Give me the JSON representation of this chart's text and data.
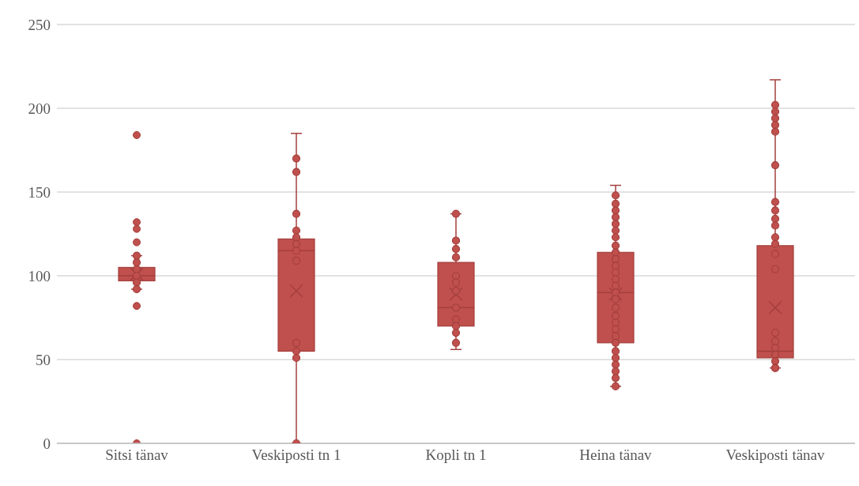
{
  "chart_data": {
    "type": "box",
    "categories": [
      "Sitsi tänav",
      "Veskiposti tn 1",
      "Kopli tn 1",
      "Heina tänav",
      "Veskiposti tänav"
    ],
    "boxes": [
      {
        "low": 92,
        "q1": 97,
        "median": 100,
        "q3": 105,
        "high": 112,
        "mean": 101,
        "outliers": [
          184,
          132,
          128,
          120,
          82,
          0
        ]
      },
      {
        "low": 0,
        "q1": 55,
        "median": 115,
        "q3": 122,
        "high": 185,
        "mean": 91
      },
      {
        "low": 56,
        "q1": 70,
        "median": 81,
        "q3": 108,
        "high": 137,
        "mean": 89
      },
      {
        "low": 34,
        "q1": 60,
        "median": 90,
        "q3": 114,
        "high": 154,
        "mean": 89
      },
      {
        "low": 45,
        "q1": 51,
        "median": 55,
        "q3": 118,
        "high": 217,
        "mean": 81
      }
    ],
    "color": "#c0504d",
    "series": [
      {
        "type": "scatter",
        "color": "#c0504d",
        "x": [
          "Sitsi tänav",
          "Sitsi tänav",
          "Sitsi tänav",
          "Sitsi tänav",
          "Sitsi tänav",
          "Sitsi tänav",
          "Veskiposti tn 1",
          "Veskiposti tn 1",
          "Veskiposti tn 1",
          "Veskiposti tn 1",
          "Veskiposti tn 1",
          "Veskiposti tn 1",
          "Veskiposti tn 1",
          "Veskiposti tn 1",
          "Veskiposti tn 1",
          "Veskiposti tn 1",
          "Veskiposti tn 1",
          "Veskiposti tn 1",
          "Kopli tn 1",
          "Kopli tn 1",
          "Kopli tn 1",
          "Kopli tn 1",
          "Kopli tn 1",
          "Kopli tn 1",
          "Kopli tn 1",
          "Kopli tn 1",
          "Kopli tn 1",
          "Kopli tn 1",
          "Kopli tn 1",
          "Kopli tn 1",
          "Heina tänav",
          "Heina tänav",
          "Heina tänav",
          "Heina tänav",
          "Heina tänav",
          "Heina tänav",
          "Heina tänav",
          "Heina tänav",
          "Heina tänav",
          "Heina tänav",
          "Heina tänav",
          "Heina tänav",
          "Heina tänav",
          "Heina tänav",
          "Heina tänav",
          "Heina tänav",
          "Heina tänav",
          "Heina tänav",
          "Heina tänav",
          "Heina tänav",
          "Heina tänav",
          "Heina tänav",
          "Heina tänav",
          "Heina tänav",
          "Heina tänav",
          "Heina tänav",
          "Heina tänav",
          "Heina tänav",
          "Veskiposti tänav",
          "Veskiposti tänav",
          "Veskiposti tänav",
          "Veskiposti tänav",
          "Veskiposti tänav",
          "Veskiposti tänav",
          "Veskiposti tänav",
          "Veskiposti tänav",
          "Veskiposti tänav",
          "Veskiposti tänav",
          "Veskiposti tänav",
          "Veskiposti tänav",
          "Veskiposti tänav",
          "Veskiposti tänav",
          "Veskiposti tänav",
          "Veskiposti tänav",
          "Veskiposti tänav",
          "Veskiposti tänav",
          "Veskiposti tänav",
          "Veskiposti tänav",
          "Veskiposti tänav"
        ],
        "values": [
          112,
          108,
          104,
          100,
          96,
          92,
          170,
          162,
          137,
          127,
          123,
          119,
          115,
          109,
          60,
          55,
          51,
          0,
          137,
          121,
          116,
          111,
          100,
          96,
          91,
          81,
          74,
          70,
          66,
          60,
          148,
          143,
          139,
          135,
          131,
          127,
          123,
          118,
          114,
          110,
          106,
          102,
          98,
          94,
          90,
          86,
          81,
          76,
          72,
          68,
          64,
          60,
          55,
          51,
          47,
          43,
          39,
          34,
          202,
          198,
          194,
          190,
          186,
          166,
          144,
          139,
          134,
          130,
          123,
          119,
          113,
          104,
          66,
          61,
          57,
          53,
          49,
          45,
          45
        ]
      }
    ],
    "marker": "circle",
    "ylim": [
      0,
      250
    ],
    "yticks": [
      0,
      50,
      100,
      150,
      200,
      250
    ],
    "grid": "y"
  }
}
